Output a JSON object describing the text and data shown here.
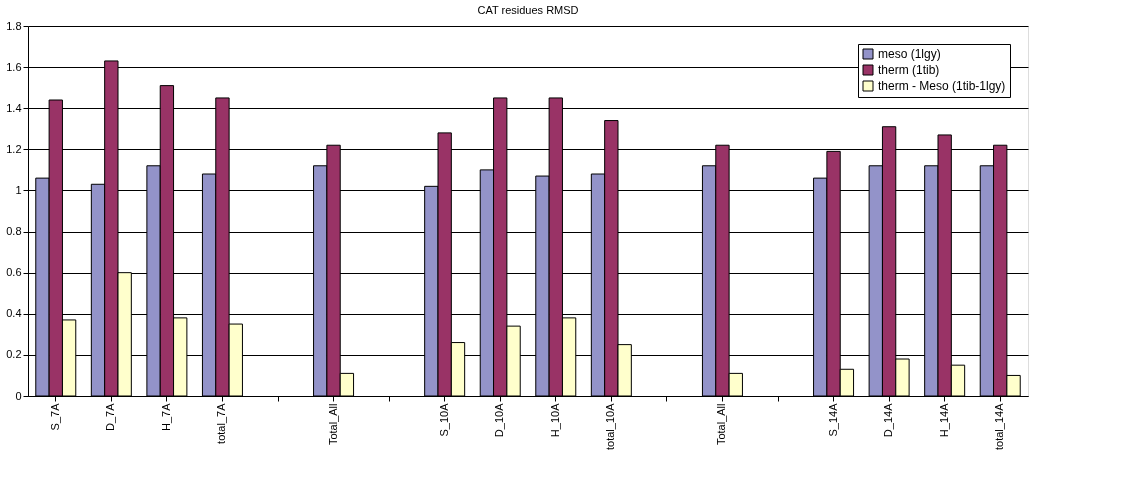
{
  "chart_data": {
    "type": "bar",
    "title": "CAT residues RMSD",
    "categories": [
      "S_7A",
      "D_7A",
      "H_7A",
      "total_7A",
      null,
      "Total_All",
      null,
      "S_10A",
      "D_10A",
      "H_10A",
      "total_10A",
      null,
      "Total_All",
      null,
      "S_14A",
      "D_14A",
      "H_14A",
      "total_14A"
    ],
    "series": [
      {
        "name": "meso (1lgy)",
        "color": "#9393c9",
        "values": [
          1.06,
          1.03,
          1.12,
          1.08,
          null,
          1.12,
          null,
          1.02,
          1.1,
          1.07,
          1.08,
          null,
          1.12,
          null,
          1.06,
          1.12,
          1.12,
          1.12
        ]
      },
      {
        "name": "therm (1tib)",
        "color": "#993366",
        "values": [
          1.44,
          1.63,
          1.51,
          1.45,
          null,
          1.22,
          null,
          1.28,
          1.45,
          1.45,
          1.34,
          null,
          1.22,
          null,
          1.19,
          1.31,
          1.27,
          1.22
        ]
      },
      {
        "name": "therm - Meso (1tib-1lgy)",
        "color": "#ffffcc",
        "values": [
          0.37,
          0.6,
          0.38,
          0.35,
          null,
          0.11,
          null,
          0.26,
          0.34,
          0.38,
          0.25,
          null,
          0.11,
          null,
          0.13,
          0.18,
          0.15,
          0.1
        ]
      }
    ],
    "ylim": [
      0,
      1.8
    ],
    "yticks": [
      0,
      0.2,
      0.4,
      0.6,
      0.8,
      1,
      1.2,
      1.4,
      1.6,
      1.8
    ],
    "grid": "y",
    "legend": "top right"
  }
}
